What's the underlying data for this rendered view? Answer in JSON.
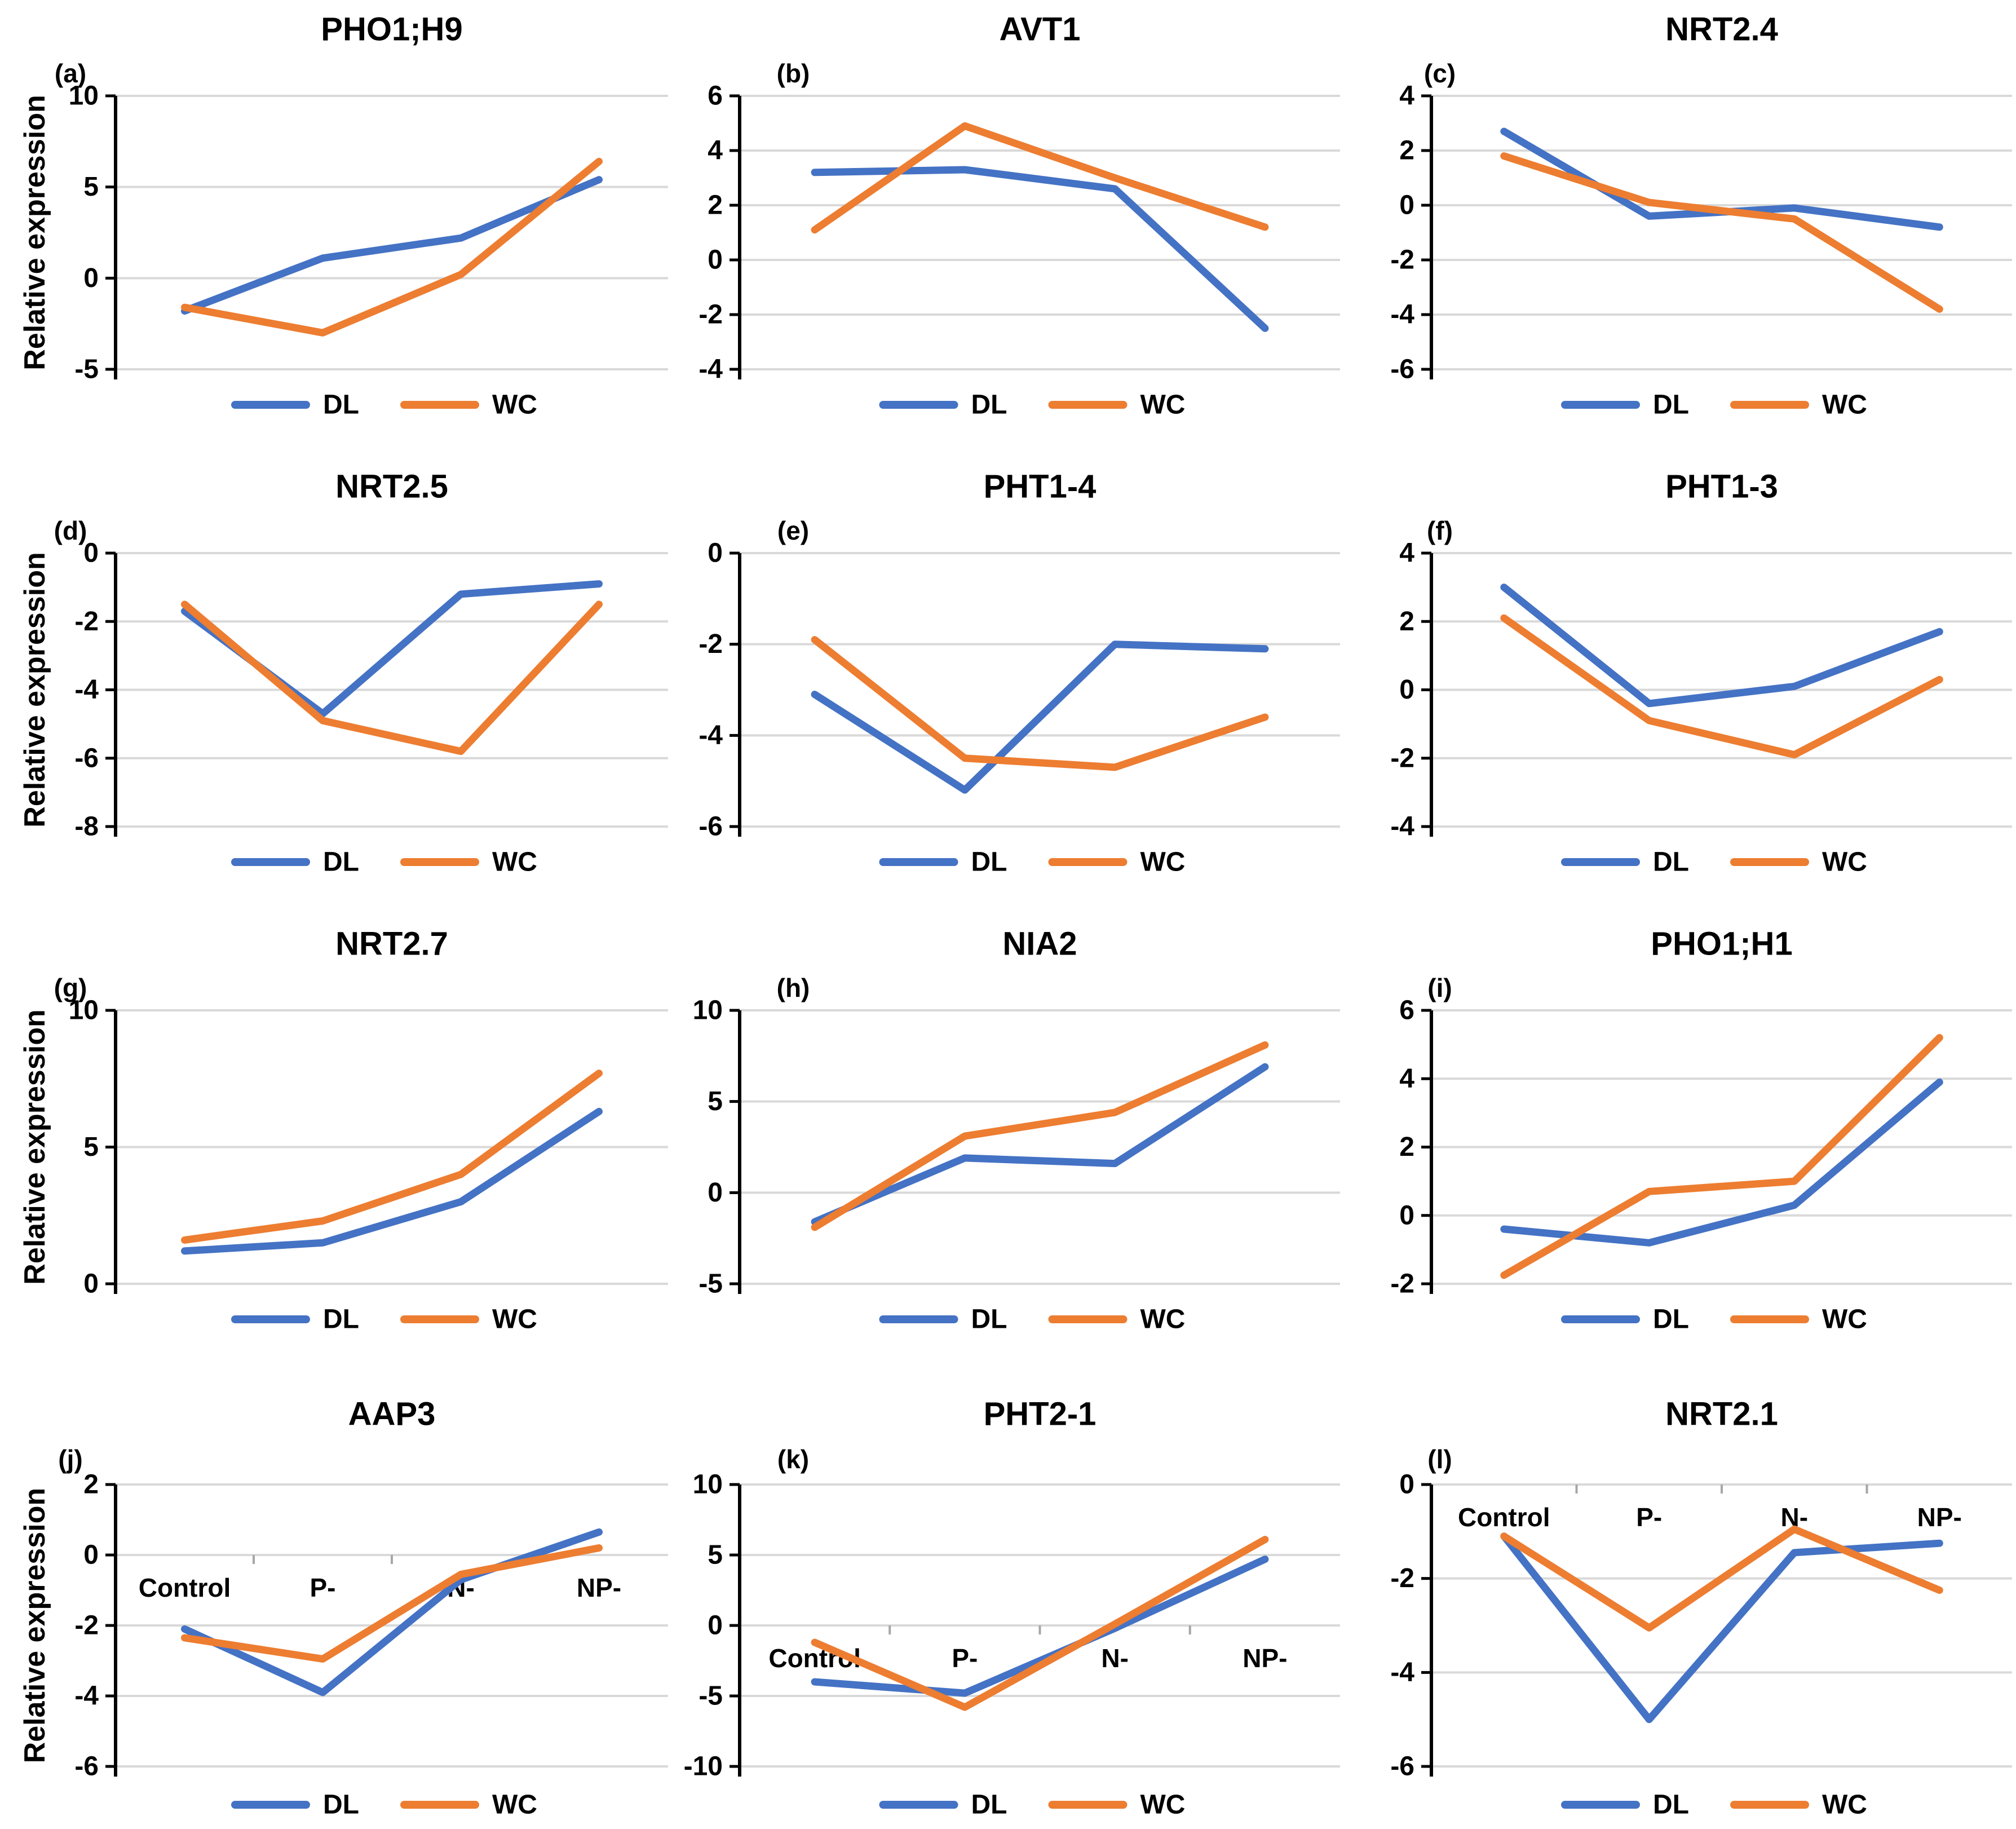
{
  "figure": {
    "ylabel": "Relative expression",
    "categories": [
      "Control",
      "P-",
      "N-",
      "NP-"
    ],
    "legend": [
      "DL",
      "WC"
    ],
    "colors": {
      "dl": "#4472C4",
      "wc": "#ED7D31",
      "gridline": "#D9D9D9",
      "axis": "#000000",
      "boundary_tick": "#A6A6A6",
      "text": "#000000"
    }
  },
  "chart_data": [
    {
      "type": "line",
      "panel_letter": "(a)",
      "title": "PHO1;H9",
      "categories": [
        "Control",
        "P-",
        "N-",
        "NP-"
      ],
      "ylabel": "Relative expression",
      "show_ylabel": true,
      "show_xlabels": false,
      "ylim": [
        -5,
        10
      ],
      "yticks": [
        10,
        5,
        0,
        -5
      ],
      "grid": true,
      "legend_position": "bottom",
      "series": [
        {
          "name": "DL",
          "color": "#4472C4",
          "values": [
            -1.8,
            1.1,
            2.2,
            5.4
          ]
        },
        {
          "name": "WC",
          "color": "#ED7D31",
          "values": [
            -1.6,
            -3.0,
            0.2,
            6.4
          ]
        }
      ]
    },
    {
      "type": "line",
      "panel_letter": "(b)",
      "title": "AVT1",
      "categories": [
        "Control",
        "P-",
        "N-",
        "NP-"
      ],
      "ylabel": "Relative expression",
      "show_ylabel": false,
      "show_xlabels": false,
      "ylim": [
        -4,
        6
      ],
      "yticks": [
        6,
        4,
        2,
        0,
        -2,
        -4
      ],
      "grid": true,
      "legend_position": "bottom",
      "series": [
        {
          "name": "DL",
          "color": "#4472C4",
          "values": [
            3.2,
            3.3,
            2.6,
            -2.5
          ]
        },
        {
          "name": "WC",
          "color": "#ED7D31",
          "values": [
            1.1,
            4.9,
            3.0,
            1.2
          ]
        }
      ]
    },
    {
      "type": "line",
      "panel_letter": "(c)",
      "title": "NRT2.4",
      "categories": [
        "Control",
        "P-",
        "N-",
        "NP-"
      ],
      "ylabel": "Relative expression",
      "show_ylabel": false,
      "show_xlabels": false,
      "ylim": [
        -6,
        4
      ],
      "yticks": [
        4,
        2,
        0,
        -2,
        -4,
        -6
      ],
      "grid": true,
      "legend_position": "bottom",
      "series": [
        {
          "name": "DL",
          "color": "#4472C4",
          "values": [
            2.7,
            -0.4,
            -0.1,
            -0.8
          ]
        },
        {
          "name": "WC",
          "color": "#ED7D31",
          "values": [
            1.8,
            0.1,
            -0.5,
            -3.8
          ]
        }
      ]
    },
    {
      "type": "line",
      "panel_letter": "(d)",
      "title": "NRT2.5",
      "categories": [
        "Control",
        "P-",
        "N-",
        "NP-"
      ],
      "ylabel": "Relative expression",
      "show_ylabel": true,
      "show_xlabels": false,
      "ylim": [
        -8,
        0
      ],
      "yticks": [
        0,
        -2,
        -4,
        -6,
        -8
      ],
      "grid": true,
      "legend_position": "bottom",
      "series": [
        {
          "name": "DL",
          "color": "#4472C4",
          "values": [
            -1.7,
            -4.7,
            -1.2,
            -0.9
          ]
        },
        {
          "name": "WC",
          "color": "#ED7D31",
          "values": [
            -1.5,
            -4.9,
            -5.8,
            -1.5
          ]
        }
      ]
    },
    {
      "type": "line",
      "panel_letter": "(e)",
      "title": "PHT1-4",
      "categories": [
        "Control",
        "P-",
        "N-",
        "NP-"
      ],
      "ylabel": "Relative expression",
      "show_ylabel": false,
      "show_xlabels": false,
      "ylim": [
        -6,
        0
      ],
      "yticks": [
        0,
        -2,
        -4,
        -6
      ],
      "grid": true,
      "legend_position": "bottom",
      "series": [
        {
          "name": "DL",
          "color": "#4472C4",
          "values": [
            -3.1,
            -5.2,
            -2.0,
            -2.1
          ]
        },
        {
          "name": "WC",
          "color": "#ED7D31",
          "values": [
            -1.9,
            -4.5,
            -4.7,
            -3.6
          ]
        }
      ]
    },
    {
      "type": "line",
      "panel_letter": "(f)",
      "title": "PHT1-3",
      "categories": [
        "Control",
        "P-",
        "N-",
        "NP-"
      ],
      "ylabel": "Relative expression",
      "show_ylabel": false,
      "show_xlabels": false,
      "ylim": [
        -4,
        4
      ],
      "yticks": [
        4,
        2,
        0,
        -2,
        -4
      ],
      "grid": true,
      "legend_position": "bottom",
      "series": [
        {
          "name": "DL",
          "color": "#4472C4",
          "values": [
            3.0,
            -0.4,
            0.1,
            1.7
          ]
        },
        {
          "name": "WC",
          "color": "#ED7D31",
          "values": [
            2.1,
            -0.9,
            -1.9,
            0.3
          ]
        }
      ]
    },
    {
      "type": "line",
      "panel_letter": "(g)",
      "title": "NRT2.7",
      "categories": [
        "Control",
        "P-",
        "N-",
        "NP-"
      ],
      "ylabel": "Relative expression",
      "show_ylabel": true,
      "show_xlabels": false,
      "ylim": [
        0,
        10
      ],
      "yticks": [
        10,
        5,
        0
      ],
      "grid": true,
      "legend_position": "bottom",
      "series": [
        {
          "name": "DL",
          "color": "#4472C4",
          "values": [
            1.2,
            1.5,
            3.0,
            6.3
          ]
        },
        {
          "name": "WC",
          "color": "#ED7D31",
          "values": [
            1.6,
            2.3,
            4.0,
            7.7
          ]
        }
      ]
    },
    {
      "type": "line",
      "panel_letter": "(h)",
      "title": "NIA2",
      "categories": [
        "Control",
        "P-",
        "N-",
        "NP-"
      ],
      "ylabel": "Relative expression",
      "show_ylabel": false,
      "show_xlabels": false,
      "ylim": [
        -5,
        10
      ],
      "yticks": [
        10,
        5,
        0,
        -5
      ],
      "grid": true,
      "legend_position": "bottom",
      "series": [
        {
          "name": "DL",
          "color": "#4472C4",
          "values": [
            -1.6,
            1.9,
            1.6,
            6.9
          ]
        },
        {
          "name": "WC",
          "color": "#ED7D31",
          "values": [
            -1.9,
            3.1,
            4.4,
            8.1
          ]
        }
      ]
    },
    {
      "type": "line",
      "panel_letter": "(i)",
      "title": "PHO1;H1",
      "categories": [
        "Control",
        "P-",
        "N-",
        "NP-"
      ],
      "ylabel": "Relative expression",
      "show_ylabel": false,
      "show_xlabels": false,
      "ylim": [
        -2,
        6
      ],
      "yticks": [
        6,
        4,
        2,
        0,
        -2
      ],
      "grid": true,
      "legend_position": "bottom",
      "series": [
        {
          "name": "DL",
          "color": "#4472C4",
          "values": [
            -0.4,
            -0.8,
            0.3,
            3.9
          ]
        },
        {
          "name": "WC",
          "color": "#ED7D31",
          "values": [
            -1.75,
            0.7,
            1.0,
            5.2
          ]
        }
      ]
    },
    {
      "type": "line",
      "panel_letter": "(j)",
      "title": "AAP3",
      "categories": [
        "Control",
        "P-",
        "N-",
        "NP-"
      ],
      "ylabel": "Relative expression",
      "show_ylabel": true,
      "show_xlabels": true,
      "ylim": [
        -6,
        2
      ],
      "yticks": [
        2,
        0,
        -2,
        -4,
        -6
      ],
      "grid": true,
      "legend_position": "bottom",
      "series": [
        {
          "name": "DL",
          "color": "#4472C4",
          "values": [
            -2.1,
            -3.9,
            -0.7,
            0.65
          ]
        },
        {
          "name": "WC",
          "color": "#ED7D31",
          "values": [
            -2.35,
            -2.95,
            -0.55,
            0.2
          ]
        }
      ]
    },
    {
      "type": "line",
      "panel_letter": "(k)",
      "title": "PHT2-1",
      "categories": [
        "Control",
        "P-",
        "N-",
        "NP-"
      ],
      "ylabel": "Relative expression",
      "show_ylabel": false,
      "show_xlabels": true,
      "ylim": [
        -10,
        10
      ],
      "yticks": [
        10,
        5,
        0,
        -5,
        -10
      ],
      "grid": true,
      "legend_position": "bottom",
      "series": [
        {
          "name": "DL",
          "color": "#4472C4",
          "values": [
            -4.0,
            -4.8,
            -0.2,
            4.7
          ]
        },
        {
          "name": "WC",
          "color": "#ED7D31",
          "values": [
            -1.2,
            -5.8,
            0.1,
            6.1
          ]
        }
      ]
    },
    {
      "type": "line",
      "panel_letter": "(l)",
      "title": "NRT2.1",
      "categories": [
        "Control",
        "P-",
        "N-",
        "NP-"
      ],
      "ylabel": "Relative expression",
      "show_ylabel": false,
      "show_xlabels": true,
      "ylim": [
        -6,
        0
      ],
      "yticks": [
        0,
        -2,
        -4,
        -6
      ],
      "grid": true,
      "legend_position": "bottom",
      "series": [
        {
          "name": "DL",
          "color": "#4472C4",
          "values": [
            -1.1,
            -5.0,
            -1.45,
            -1.25
          ]
        },
        {
          "name": "WC",
          "color": "#ED7D31",
          "values": [
            -1.1,
            -3.05,
            -0.95,
            -2.25
          ]
        }
      ]
    }
  ]
}
